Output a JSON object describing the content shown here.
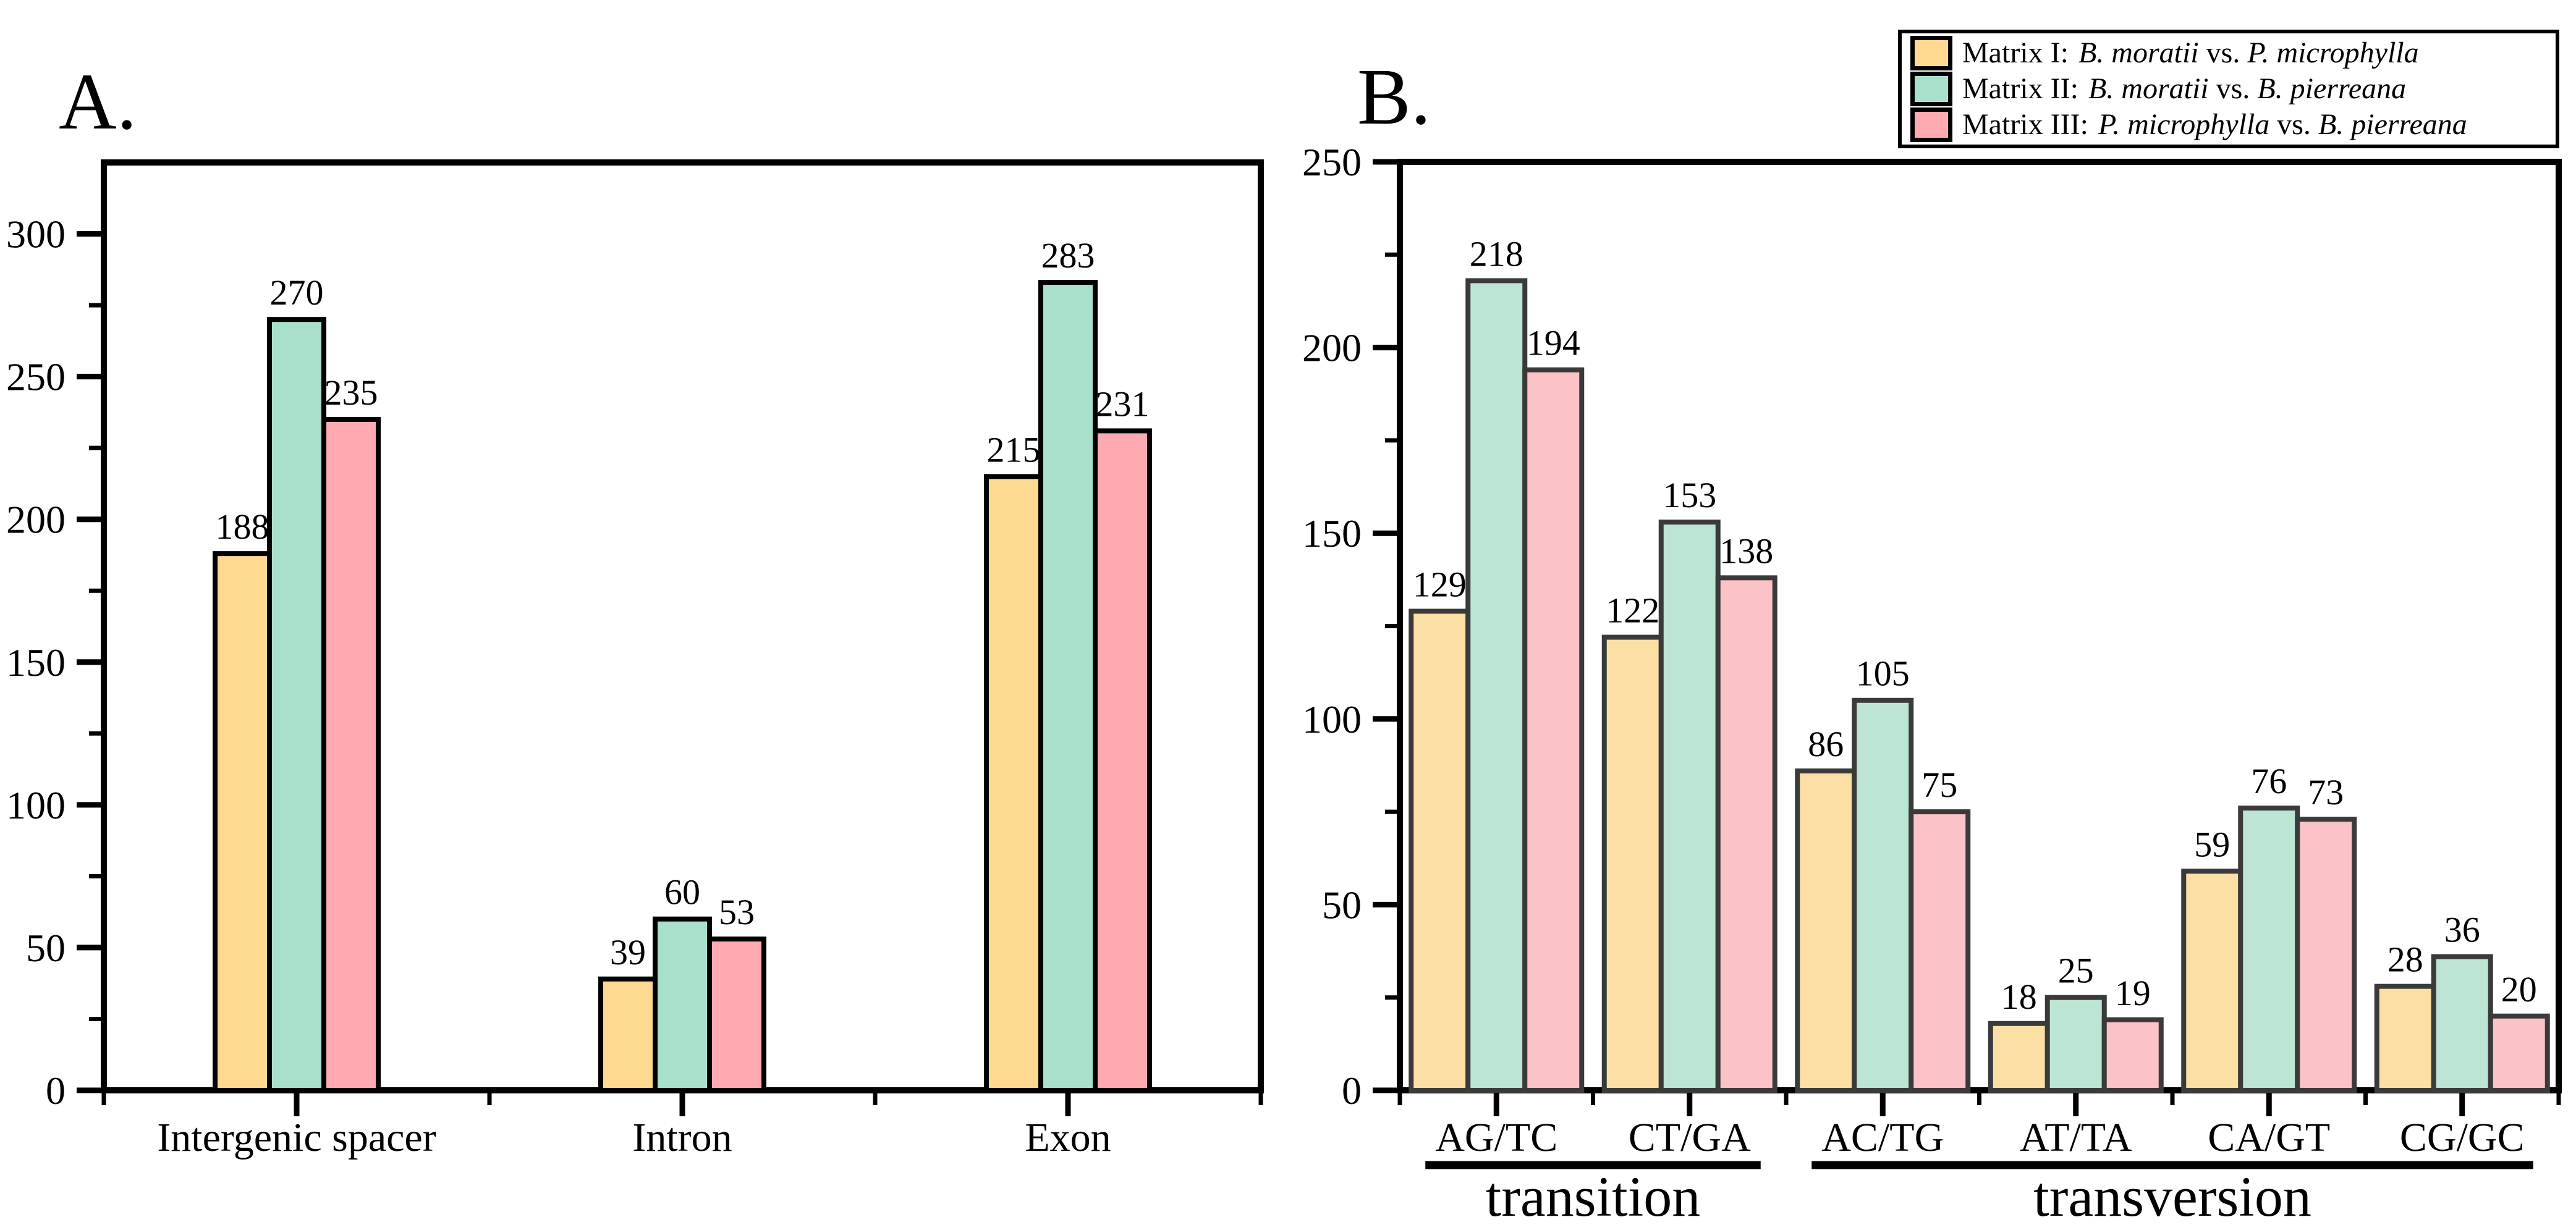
{
  "panels": {
    "a_label": "A.",
    "b_label": "B."
  },
  "legend": {
    "items": [
      {
        "prefix": "Matrix I:",
        "species_a": "B. moratii",
        "vs": "vs.",
        "species_b": "P. microphylla",
        "color": "#FFD992"
      },
      {
        "prefix": "Matrix II:",
        "species_a": "B. moratii",
        "vs": "vs.",
        "species_b": "B. pierreana",
        "color": "#A9E0CC"
      },
      {
        "prefix": "Matrix III:",
        "species_a": "P. microphylla",
        "vs": "vs.",
        "species_b": "B. pierreana",
        "color": "#FFA9B1"
      }
    ]
  },
  "colors": {
    "panel_a_series": [
      "#FFD992",
      "#A9E0CC",
      "#FFA9B1"
    ],
    "panel_b_series": [
      "#FBDFA4",
      "#BCE5D3",
      "#FBC2C8"
    ],
    "bar_outline_a": "#000000",
    "bar_outline_b": "#3A3A3A",
    "frame": "#000000",
    "text": "#000000"
  },
  "chart_data": [
    {
      "type": "bar",
      "panel": "A.",
      "title": "",
      "xlabel": "",
      "ylabel": "",
      "categories": [
        "Intergenic spacer",
        "Intron",
        "Exon"
      ],
      "series": [
        {
          "name": "Matrix I: B. moratii vs. P. microphylla",
          "values": [
            188,
            39,
            215
          ]
        },
        {
          "name": "Matrix II: B. moratii vs. B. pierreana",
          "values": [
            270,
            60,
            283
          ]
        },
        {
          "name": "Matrix III: P. microphylla vs. B. pierreana",
          "values": [
            235,
            53,
            231
          ]
        }
      ],
      "ylim": [
        0,
        325
      ],
      "yticks": [
        0,
        50,
        100,
        150,
        200,
        250,
        300
      ],
      "minor_tick_step": 25,
      "grid": false,
      "legend_position": "top-right-shared",
      "bar_labels": true
    },
    {
      "type": "bar",
      "panel": "B.",
      "title": "",
      "xlabel": "",
      "ylabel": "",
      "categories": [
        "AG/TC",
        "CT/GA",
        "AC/TG",
        "AT/TA",
        "CA/GT",
        "CG/GC"
      ],
      "series": [
        {
          "name": "Matrix I: B. moratii vs. P. microphylla",
          "values": [
            129,
            122,
            86,
            18,
            59,
            28
          ]
        },
        {
          "name": "Matrix II: B. moratii vs. B. pierreana",
          "values": [
            218,
            153,
            105,
            25,
            76,
            36
          ]
        },
        {
          "name": "Matrix III: P. microphylla vs. B. pierreana",
          "values": [
            194,
            138,
            75,
            19,
            73,
            20
          ]
        }
      ],
      "ylim": [
        0,
        250
      ],
      "yticks": [
        0,
        50,
        100,
        150,
        200,
        250
      ],
      "minor_tick_step": 25,
      "grid": false,
      "legend_position": "top-right-shared",
      "bar_labels": true,
      "group_annotations": [
        {
          "label": "transition",
          "from": 0,
          "to": 1
        },
        {
          "label": "transversion",
          "from": 2,
          "to": 5
        }
      ]
    }
  ]
}
